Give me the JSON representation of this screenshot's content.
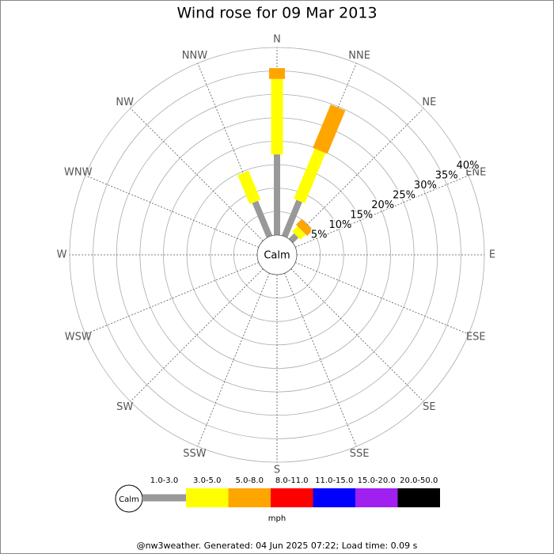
{
  "chart_data": {
    "type": "windrose",
    "title": "Wind rose for 09 Mar 2013",
    "directions": [
      "N",
      "NNE",
      "NE",
      "ENE",
      "E",
      "ESE",
      "SE",
      "SSE",
      "S",
      "SSW",
      "SW",
      "WSW",
      "W",
      "WNW",
      "NW",
      "NNW"
    ],
    "center_label": "Calm",
    "rlim": [
      0,
      40
    ],
    "rticks": [
      {
        "value": 5,
        "label": "5%"
      },
      {
        "value": 10,
        "label": "10%"
      },
      {
        "value": 15,
        "label": "15%"
      },
      {
        "value": 20,
        "label": "20%"
      },
      {
        "value": 25,
        "label": "25%"
      },
      {
        "value": 30,
        "label": "30%"
      },
      {
        "value": 35,
        "label": "35%"
      },
      {
        "value": 40,
        "label": "40%"
      }
    ],
    "units": "mph",
    "series": [
      {
        "name": "1.0-3.0",
        "color": "#999999",
        "values": [
          17.2,
          8.2,
          1.6,
          0,
          0,
          0,
          0,
          0,
          0,
          0,
          0,
          0,
          0,
          0,
          0,
          8.0
        ]
      },
      {
        "name": "3.0-5.0",
        "color": "#ffff00",
        "values": [
          16.1,
          11.6,
          1.6,
          0,
          0,
          0,
          0,
          0,
          0,
          0,
          0,
          0,
          0,
          0,
          0,
          6.7
        ]
      },
      {
        "name": "5.0-8.0",
        "color": "#ffa500",
        "values": [
          2.3,
          10.0,
          1.7,
          0,
          0,
          0,
          0,
          0,
          0,
          0,
          0,
          0,
          0,
          0,
          0,
          0
        ]
      },
      {
        "name": "8.0-11.0",
        "color": "#ff0000",
        "values": [
          0,
          0,
          0,
          0,
          0,
          0,
          0,
          0,
          0,
          0,
          0,
          0,
          0,
          0,
          0,
          0
        ]
      },
      {
        "name": "11.0-15.0",
        "color": "#0000ff",
        "values": [
          0,
          0,
          0,
          0,
          0,
          0,
          0,
          0,
          0,
          0,
          0,
          0,
          0,
          0,
          0,
          0
        ]
      },
      {
        "name": "15.0-20.0",
        "color": "#a020f0",
        "values": [
          0,
          0,
          0,
          0,
          0,
          0,
          0,
          0,
          0,
          0,
          0,
          0,
          0,
          0,
          0,
          0
        ]
      },
      {
        "name": "20.0-50.0",
        "color": "#000000",
        "values": [
          0,
          0,
          0,
          0,
          0,
          0,
          0,
          0,
          0,
          0,
          0,
          0,
          0,
          0,
          0,
          0
        ]
      }
    ],
    "footer": "@nw3weather. Generated: 04 Jun 2025 07:22; Load time: 0.09 s"
  }
}
